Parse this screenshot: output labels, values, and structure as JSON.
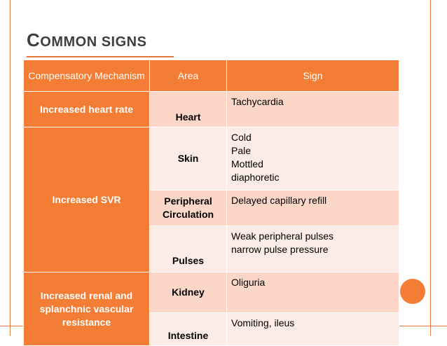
{
  "slide": {
    "title_first": "C",
    "title_rest": "ommon signs",
    "accent_color": "#f37d34",
    "row_dark_color": "#fcd6c6",
    "row_light_color": "#fdece5"
  },
  "table": {
    "headers": {
      "mechanism": "Compensatory Mechanism",
      "area": "Area",
      "sign": "Sign"
    },
    "mechanisms": {
      "m1": "Increased  heart rate",
      "m2": "Increased  SVR",
      "m3": "Increased renal and splanchnic vascular resistance"
    },
    "rows": [
      {
        "area": "Heart",
        "sign": [
          "Tachycardia"
        ]
      },
      {
        "area": "Skin",
        "sign": [
          "Cold",
          "Pale",
          "Mottled",
          "diaphoretic"
        ]
      },
      {
        "area": "Peripheral Circulation",
        "sign": [
          "Delayed capillary refill"
        ]
      },
      {
        "area": "Pulses",
        "sign": [
          "Weak peripheral pulses",
          "narrow pulse pressure"
        ]
      },
      {
        "area": "Kidney",
        "sign": [
          "Oliguria"
        ]
      },
      {
        "area": "Intestine",
        "sign": [
          "Vomiting, ileus"
        ]
      }
    ]
  }
}
